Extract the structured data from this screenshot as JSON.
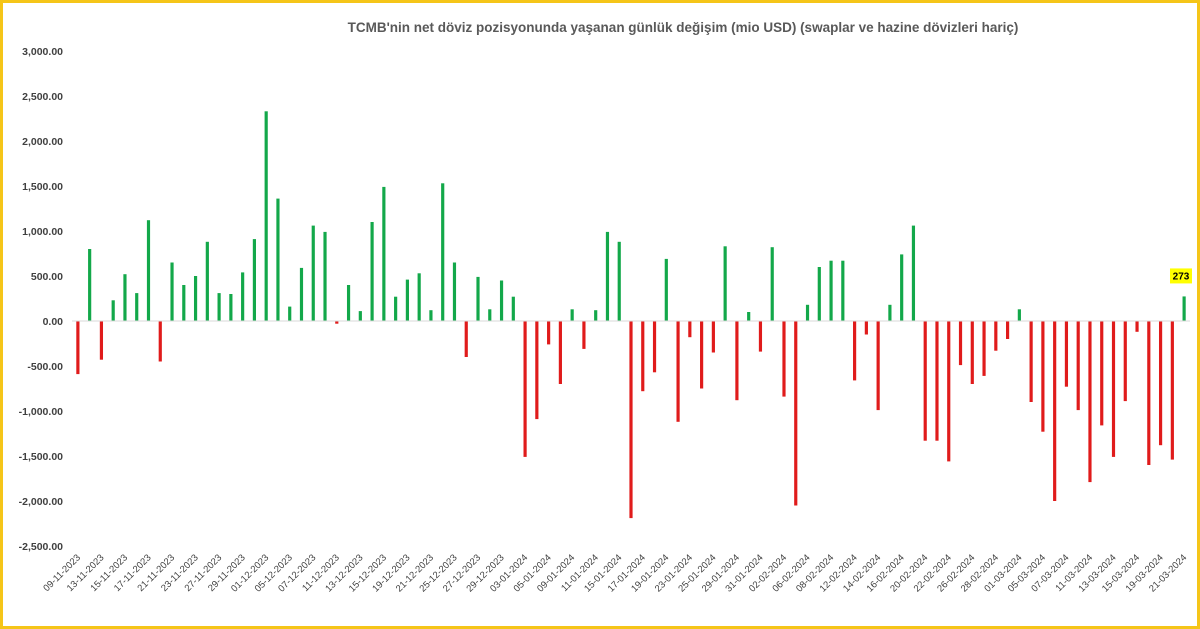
{
  "chart_data": {
    "type": "bar",
    "title": "TCMB'nin net döviz pozisyonunda yaşanan günlük değişim (mio USD) (swaplar ve hazine dövizleri hariç)",
    "xlabel": "",
    "ylabel": "",
    "ylim": [
      -2500,
      3000
    ],
    "yticks": [
      3000,
      2500,
      2000,
      1500,
      1000,
      500,
      0,
      -500,
      -1000,
      -1500,
      -2000,
      -2500
    ],
    "ytick_labels": [
      "3,000.00",
      "2,500.00",
      "2,000.00",
      "1,500.00",
      "1,000.00",
      "500.00",
      "0.00",
      "-500.00",
      "-1,000.00",
      "-1,500.00",
      "-2,000.00",
      "-2,500.00"
    ],
    "grid": false,
    "legend": "none",
    "positive_color": "#13a84a",
    "negative_color": "#e01b1b",
    "x_tick_labels": [
      "09-11-2023",
      "13-11-2023",
      "15-11-2023",
      "17-11-2023",
      "21-11-2023",
      "23-11-2023",
      "27-11-2023",
      "29-11-2023",
      "01-12-2023",
      "05-12-2023",
      "07-12-2023",
      "11-12-2023",
      "13-12-2023",
      "15-12-2023",
      "19-12-2023",
      "21-12-2023",
      "25-12-2023",
      "27-12-2023",
      "29-12-2023",
      "03-01-2024",
      "05-01-2024",
      "09-01-2024",
      "11-01-2024",
      "15-01-2024",
      "17-01-2024",
      "19-01-2024",
      "23-01-2024",
      "25-01-2024",
      "29-01-2024",
      "31-01-2024",
      "02-02-2024",
      "06-02-2024",
      "08-02-2024",
      "12-02-2024",
      "14-02-2024",
      "16-02-2024",
      "20-02-2024",
      "22-02-2024",
      "26-02-2024",
      "28-02-2024",
      "01-03-2024",
      "05-03-2024",
      "07-03-2024",
      "11-03-2024",
      "13-03-2024",
      "15-03-2024",
      "19-03-2024",
      "21-03-2024"
    ],
    "values": [
      -590,
      800,
      -430,
      230,
      520,
      310,
      1120,
      -450,
      650,
      400,
      500,
      880,
      310,
      300,
      540,
      910,
      2330,
      1360,
      160,
      590,
      1060,
      990,
      -30,
      400,
      110,
      1100,
      1490,
      270,
      460,
      530,
      120,
      1530,
      650,
      -400,
      490,
      130,
      450,
      270,
      -1510,
      -1090,
      -260,
      -700,
      130,
      -310,
      120,
      990,
      880,
      -2190,
      -780,
      -570,
      690,
      -1120,
      -180,
      -750,
      -350,
      830,
      -880,
      100,
      -340,
      820,
      -840,
      -2050,
      180,
      600,
      670,
      670,
      -660,
      -150,
      -990,
      180,
      740,
      1060,
      -1330,
      -1330,
      -1560,
      -490,
      -700,
      -610,
      -330,
      -200,
      130,
      -900,
      -1230,
      -2000,
      -730,
      -990,
      -1790,
      -1160,
      -1510,
      -890,
      -120,
      -1600,
      -1380,
      -1540,
      273
    ],
    "annotations": [
      {
        "label": "273",
        "x_index": 94,
        "y": 273,
        "background": "#ffff00"
      }
    ]
  }
}
